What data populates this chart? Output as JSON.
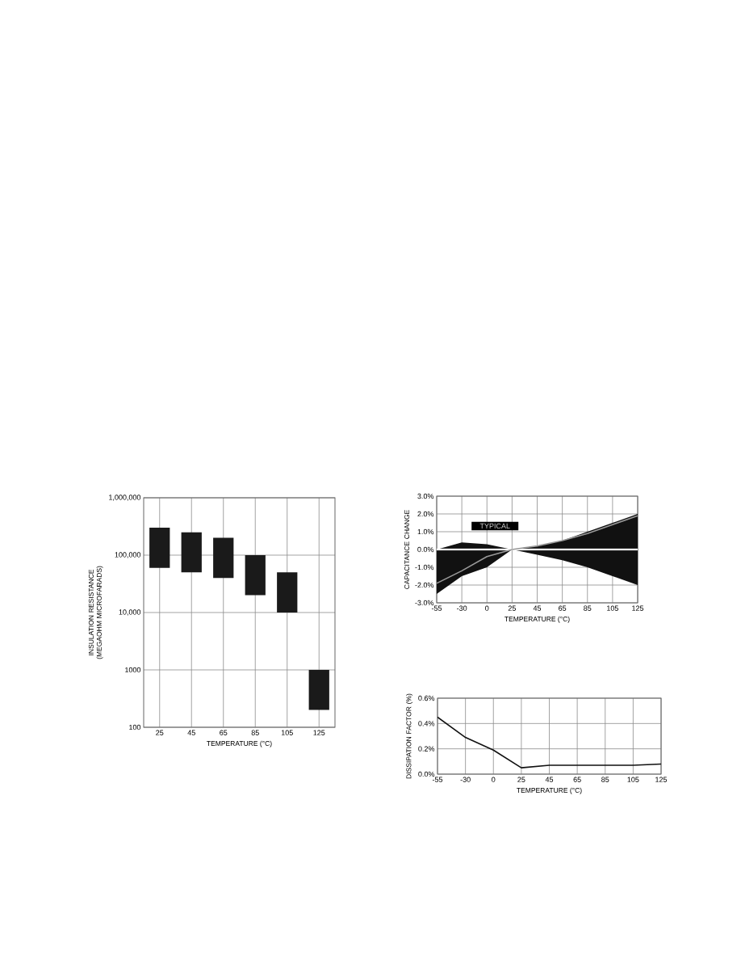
{
  "chart_data": [
    {
      "type": "bar",
      "categories": [
        "25",
        "45",
        "65",
        "85",
        "105",
        "125"
      ],
      "base": [
        60000,
        50000,
        40000,
        20000,
        10000,
        200
      ],
      "values": [
        240000,
        200000,
        160000,
        80000,
        40000,
        800
      ],
      "color": "#1a1a1a",
      "log": true,
      "ylim": [
        100,
        1000000
      ],
      "yticks": [
        100,
        1000,
        {
          "value": 10000,
          "label": "10,000"
        },
        {
          "value": 100000,
          "label": "100,000"
        },
        {
          "value": 1000000,
          "label": "1,000,000"
        }
      ],
      "grid": true,
      "xlabel": "TEMPERATURE (°C)",
      "ylabel": "INSULATION RESISTANCE (MEGAOHM MICROFARADS)"
    },
    {
      "type": "area",
      "categories": [
        "-55",
        "-30",
        "0",
        "25",
        "45",
        "65",
        "85",
        "105",
        "125"
      ],
      "series": [
        {
          "type": "area",
          "color": "#111111",
          "values": [
            0.0,
            0.4,
            0.3,
            0.0,
            0.2,
            0.5,
            1.0,
            1.5,
            2.0
          ]
        },
        {
          "type": "area",
          "color": "#111111",
          "values": [
            -2.5,
            -1.5,
            -1.0,
            0.0,
            -0.3,
            -0.6,
            -1.0,
            -1.5,
            -2.0
          ]
        },
        {
          "type": "line",
          "color": "#999999",
          "values": [
            -1.9,
            -1.2,
            -0.4,
            0.0,
            0.2,
            0.5,
            0.9,
            1.4,
            1.9
          ]
        }
      ],
      "ref_lines": [
        {
          "axis": "y",
          "value": 0,
          "color": "#ffffff"
        }
      ],
      "annotations": [
        "TYPICAL"
      ],
      "ylim": [
        -3,
        3
      ],
      "yticks": [
        {
          "value": -3,
          "label": "-3.0%"
        },
        {
          "value": -2,
          "label": "-2.0%"
        },
        {
          "value": -1,
          "label": "-1.0%"
        },
        {
          "value": 0,
          "label": "0.0%"
        },
        {
          "value": 1,
          "label": "1.0%"
        },
        {
          "value": 2,
          "label": "2.0%"
        },
        {
          "value": 3,
          "label": "3.0%"
        }
      ],
      "grid": true,
      "xlabel": "TEMPERATURE (°C)",
      "ylabel": "CAPACITANCE CHANGE"
    },
    {
      "type": "line",
      "categories": [
        "-55",
        "-30",
        "0",
        "25",
        "45",
        "65",
        "85",
        "105",
        "125"
      ],
      "values": [
        0.45,
        0.29,
        0.19,
        0.05,
        0.07,
        0.07,
        0.07,
        0.07,
        0.08
      ],
      "color": "#111111",
      "ylim": [
        0,
        0.6
      ],
      "yticks": [
        {
          "value": 0,
          "label": "0.0%"
        },
        {
          "value": 0.2,
          "label": "0.2%"
        },
        {
          "value": 0.4,
          "label": "0.4%"
        },
        {
          "value": 0.6,
          "label": "0.6%"
        }
      ],
      "grid": true,
      "xlabel": "TEMPERATURE (°C)",
      "ylabel": "DISSIPATION FACTOR (%)"
    }
  ]
}
